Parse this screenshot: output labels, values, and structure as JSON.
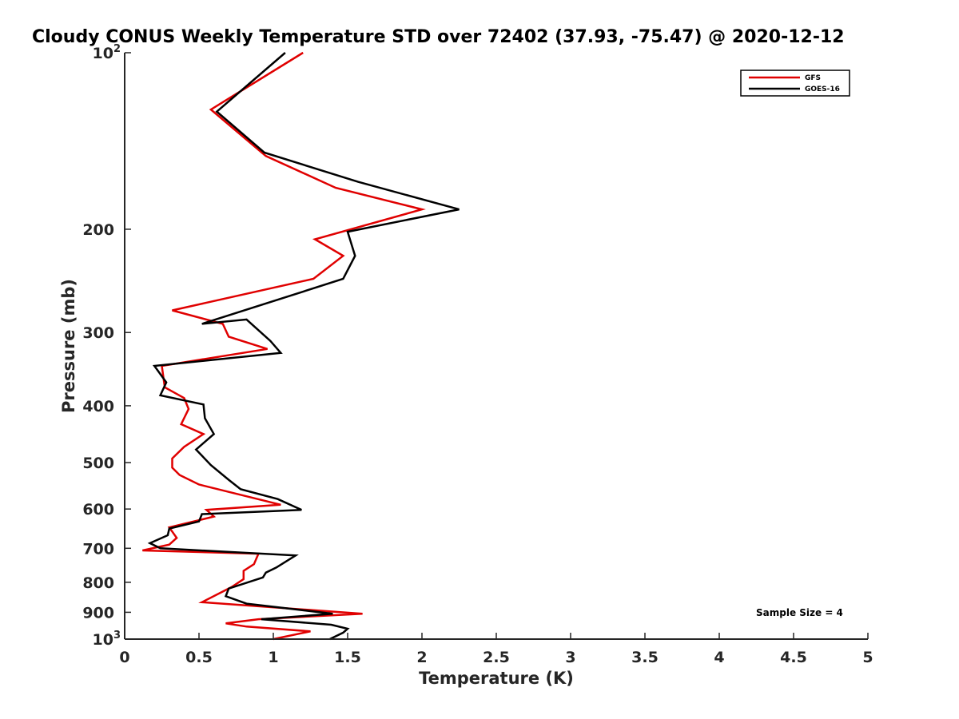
{
  "chart_data": {
    "type": "line",
    "title": "Cloudy CONUS Weekly Temperature STD over 72402 (37.93, -75.47) @ 2020-12-12",
    "xlabel": "Temperature (K)",
    "ylabel": "Pressure (mb)",
    "xlim": [
      0,
      5
    ],
    "ylim": [
      100,
      1000
    ],
    "y_scale": "log",
    "y_reversed": true,
    "x_ticks": [
      "0",
      "0.5",
      "1",
      "1.5",
      "2",
      "2.5",
      "3",
      "3.5",
      "4",
      "4.5",
      "5"
    ],
    "x_tick_values": [
      0,
      0.5,
      1,
      1.5,
      2,
      2.5,
      3,
      3.5,
      4,
      4.5,
      5
    ],
    "y_ticks": [
      {
        "value": 100,
        "base": "10",
        "exp": "2"
      },
      {
        "value": 200,
        "label": "200"
      },
      {
        "value": 300,
        "label": "300"
      },
      {
        "value": 400,
        "label": "400"
      },
      {
        "value": 500,
        "label": "500"
      },
      {
        "value": 600,
        "label": "600"
      },
      {
        "value": 700,
        "label": "700"
      },
      {
        "value": 800,
        "label": "800"
      },
      {
        "value": 900,
        "label": "900"
      },
      {
        "value": 1000,
        "base": "10",
        "exp": "3"
      }
    ],
    "grid": false,
    "legend_position": "top-right",
    "annotation": "Sample Size = 4",
    "series": [
      {
        "name": "GFS",
        "color": "#e00000",
        "points": [
          [
            1.2,
            100
          ],
          [
            0.58,
            125
          ],
          [
            0.95,
            150
          ],
          [
            1.42,
            170
          ],
          [
            2.0,
            185
          ],
          [
            1.28,
            208
          ],
          [
            1.47,
            222
          ],
          [
            1.27,
            243
          ],
          [
            0.32,
            275
          ],
          [
            0.66,
            290
          ],
          [
            0.7,
            305
          ],
          [
            0.96,
            320
          ],
          [
            0.25,
            342
          ],
          [
            0.27,
            372
          ],
          [
            0.4,
            388
          ],
          [
            0.43,
            405
          ],
          [
            0.38,
            430
          ],
          [
            0.53,
            447
          ],
          [
            0.4,
            470
          ],
          [
            0.32,
            492
          ],
          [
            0.32,
            510
          ],
          [
            0.37,
            525
          ],
          [
            0.5,
            545
          ],
          [
            1.05,
            590
          ],
          [
            0.55,
            602
          ],
          [
            0.6,
            618
          ],
          [
            0.3,
            645
          ],
          [
            0.35,
            672
          ],
          [
            0.3,
            690
          ],
          [
            0.12,
            706
          ],
          [
            0.9,
            715
          ],
          [
            0.87,
            745
          ],
          [
            0.8,
            765
          ],
          [
            0.8,
            790
          ],
          [
            0.72,
            815
          ],
          [
            0.52,
            865
          ],
          [
            1.6,
            905
          ],
          [
            0.9,
            925
          ],
          [
            0.68,
            940
          ],
          [
            0.82,
            952
          ],
          [
            1.25,
            970
          ],
          [
            1.0,
            1000
          ]
        ]
      },
      {
        "name": "GOES-16",
        "color": "#000000",
        "points": [
          [
            1.08,
            100
          ],
          [
            0.62,
            126
          ],
          [
            0.94,
            148
          ],
          [
            1.57,
            166
          ],
          [
            2.25,
            185
          ],
          [
            1.5,
            202
          ],
          [
            1.55,
            222
          ],
          [
            1.47,
            243
          ],
          [
            0.52,
            290
          ],
          [
            0.82,
            285
          ],
          [
            0.98,
            310
          ],
          [
            1.05,
            325
          ],
          [
            0.2,
            342
          ],
          [
            0.28,
            365
          ],
          [
            0.24,
            384
          ],
          [
            0.53,
            398
          ],
          [
            0.54,
            420
          ],
          [
            0.6,
            447
          ],
          [
            0.48,
            475
          ],
          [
            0.58,
            505
          ],
          [
            0.7,
            535
          ],
          [
            0.78,
            555
          ],
          [
            1.03,
            577
          ],
          [
            1.19,
            602
          ],
          [
            0.52,
            612
          ],
          [
            0.5,
            630
          ],
          [
            0.3,
            648
          ],
          [
            0.29,
            665
          ],
          [
            0.17,
            686
          ],
          [
            0.24,
            700
          ],
          [
            1.15,
            720
          ],
          [
            1.02,
            755
          ],
          [
            0.95,
            770
          ],
          [
            0.93,
            785
          ],
          [
            0.7,
            820
          ],
          [
            0.68,
            845
          ],
          [
            0.82,
            870
          ],
          [
            1.4,
            905
          ],
          [
            0.92,
            925
          ],
          [
            1.39,
            945
          ],
          [
            1.5,
            960
          ],
          [
            1.47,
            975
          ],
          [
            1.38,
            1000
          ]
        ]
      }
    ]
  }
}
